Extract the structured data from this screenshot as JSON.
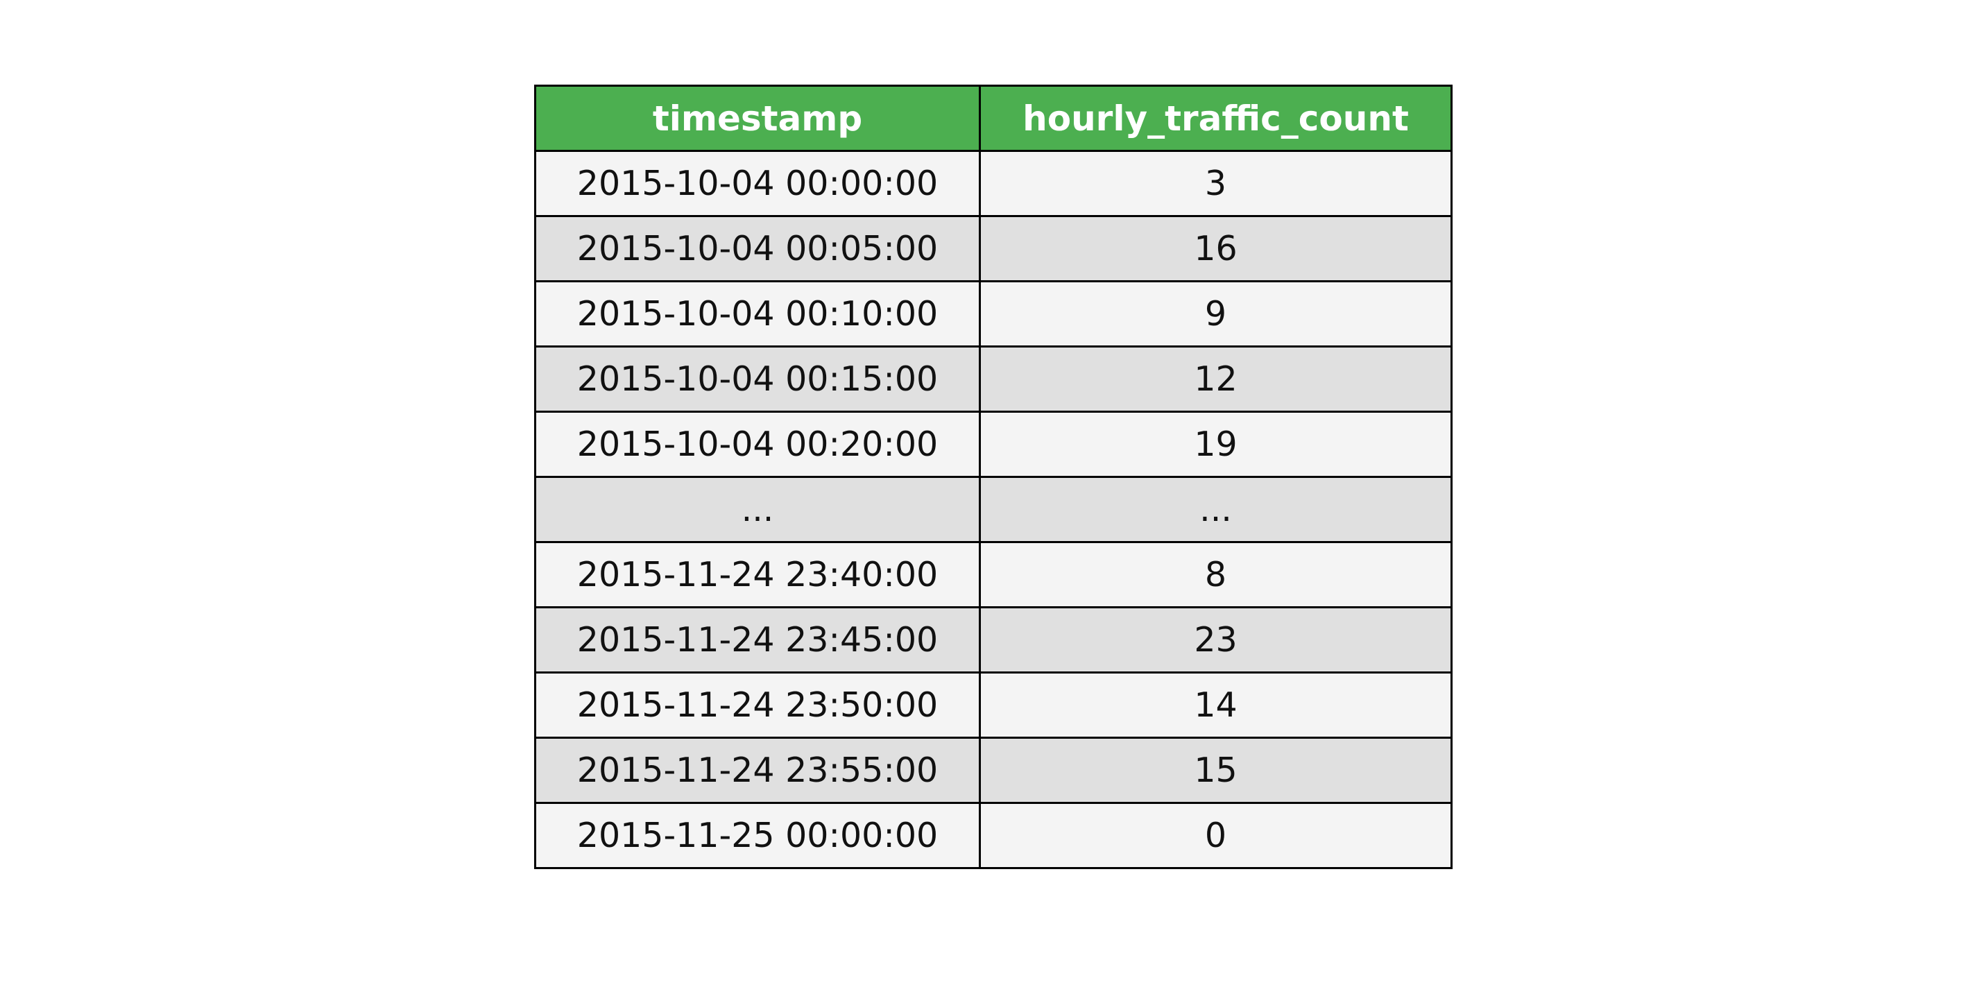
{
  "chart_data": {
    "type": "table",
    "columns": [
      "timestamp",
      "hourly_traffic_count"
    ],
    "rows": [
      [
        "2015-10-04 00:00:00",
        "3"
      ],
      [
        "2015-10-04 00:05:00",
        "16"
      ],
      [
        "2015-10-04 00:10:00",
        "9"
      ],
      [
        "2015-10-04 00:15:00",
        "12"
      ],
      [
        "2015-10-04 00:20:00",
        "19"
      ],
      [
        "...",
        "..."
      ],
      [
        "2015-11-24 23:40:00",
        "8"
      ],
      [
        "2015-11-24 23:45:00",
        "23"
      ],
      [
        "2015-11-24 23:50:00",
        "14"
      ],
      [
        "2015-11-24 23:55:00",
        "15"
      ],
      [
        "2015-11-25 00:00:00",
        "0"
      ]
    ],
    "header_color": "#4caf50",
    "row_colors": [
      "#f4f4f4",
      "#e0e0e0"
    ]
  }
}
